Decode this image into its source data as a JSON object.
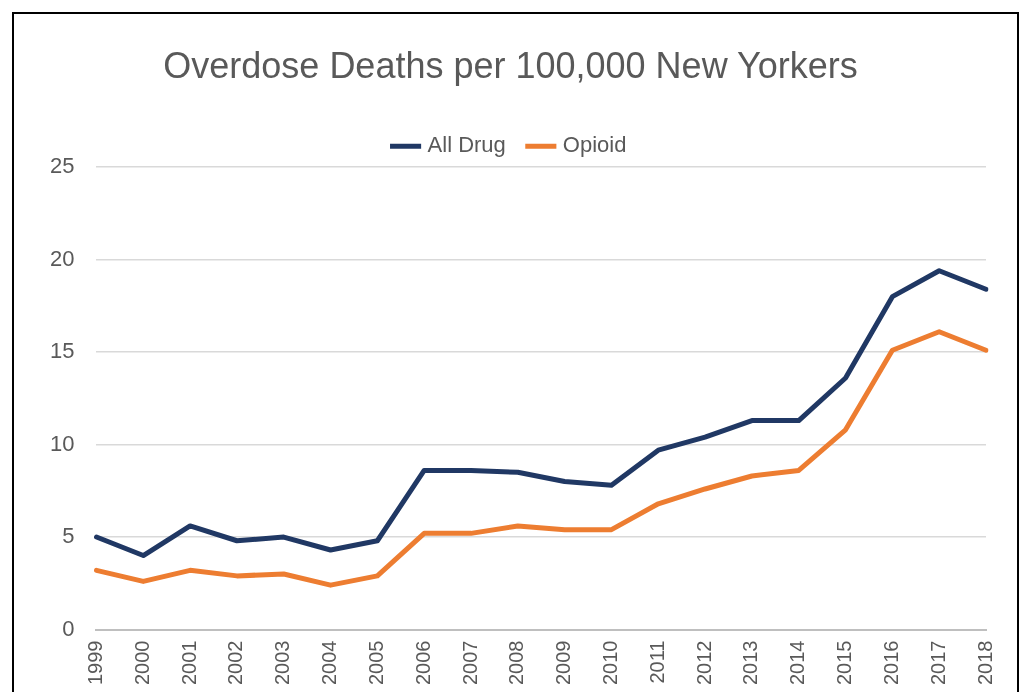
{
  "chart_data": {
    "type": "line",
    "title": "Overdose Deaths per 100,000 New Yorkers",
    "categories": [
      "1999",
      "2000",
      "2001",
      "2002",
      "2003",
      "2004",
      "2005",
      "2006",
      "2007",
      "2008",
      "2009",
      "2010",
      "2011",
      "2012",
      "2013",
      "2014",
      "2015",
      "2016",
      "2017",
      "2018"
    ],
    "series": [
      {
        "name": "All Drug",
        "color": "#203864",
        "values": [
          5.0,
          4.0,
          5.6,
          4.8,
          5.0,
          4.3,
          4.8,
          8.6,
          8.6,
          8.5,
          8.0,
          7.8,
          9.7,
          10.4,
          11.3,
          11.3,
          13.6,
          18.0,
          19.4,
          18.4
        ]
      },
      {
        "name": "Opioid",
        "color": "#ed7d31",
        "values": [
          3.2,
          2.6,
          3.2,
          2.9,
          3.0,
          2.4,
          2.9,
          5.2,
          5.2,
          5.6,
          5.4,
          5.4,
          6.8,
          7.6,
          8.3,
          8.6,
          10.8,
          15.1,
          16.1,
          15.1
        ]
      }
    ],
    "ylim": [
      0,
      25
    ],
    "yticks": [
      0,
      5,
      10,
      15,
      20,
      25
    ],
    "grid": "y",
    "legend": "top",
    "marker": "none",
    "line_style": "solid"
  }
}
